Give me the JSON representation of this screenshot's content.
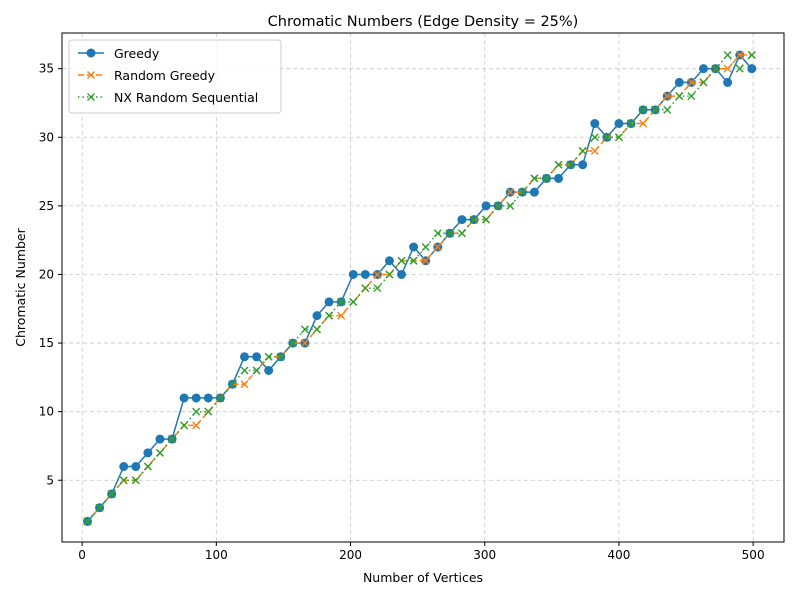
{
  "chart_data": {
    "type": "line",
    "title": "Chromatic Numbers (Edge Density = 25%)",
    "xlabel": "Number of Vertices",
    "ylabel": "Chromatic Number",
    "xlim": [
      -15,
      523
    ],
    "ylim": [
      0.5,
      37.6
    ],
    "xticks": [
      0,
      100,
      200,
      300,
      400,
      500
    ],
    "yticks": [
      5,
      10,
      15,
      20,
      25,
      30,
      35
    ],
    "grid": true,
    "legend_position": "top-left",
    "x": [
      4,
      13,
      22,
      31,
      40,
      49,
      58,
      67,
      76,
      85,
      94,
      103,
      112,
      121,
      130,
      139,
      148,
      157,
      166,
      175,
      184,
      193,
      202,
      211,
      220,
      229,
      238,
      247,
      256,
      265,
      274,
      283,
      292,
      301,
      310,
      319,
      328,
      337,
      346,
      355,
      364,
      373,
      382,
      391,
      400,
      409,
      418,
      427,
      436,
      445,
      454,
      463,
      472,
      481,
      490,
      499
    ],
    "series": [
      {
        "name": "Greedy",
        "color": "#1f77b4",
        "marker": "circle",
        "linestyle": "solid",
        "values": [
          2,
          3,
          4,
          6,
          6,
          7,
          8,
          8,
          11,
          11,
          11,
          11,
          12,
          14,
          14,
          13,
          14,
          15,
          15,
          17,
          18,
          18,
          20,
          20,
          20,
          21,
          20,
          22,
          21,
          22,
          23,
          24,
          24,
          25,
          25,
          26,
          26,
          26,
          27,
          27,
          28,
          28,
          31,
          30,
          31,
          31,
          32,
          32,
          33,
          34,
          34,
          35,
          35,
          34,
          36,
          35
        ]
      },
      {
        "name": "Random Greedy",
        "color": "#ff7f0e",
        "marker": "x",
        "linestyle": "dashed",
        "values": [
          2,
          3,
          4,
          5,
          5,
          6,
          7,
          8,
          9,
          9,
          10,
          11,
          12,
          12,
          13,
          14,
          14,
          15,
          15,
          16,
          17,
          17,
          18,
          19,
          20,
          20,
          21,
          21,
          21,
          22,
          23,
          23,
          24,
          24,
          25,
          26,
          26,
          27,
          27,
          28,
          28,
          29,
          29,
          30,
          30,
          31,
          31,
          32,
          33,
          33,
          34,
          34,
          35,
          35,
          36,
          36
        ]
      },
      {
        "name": "NX Random Sequential",
        "color": "#2ca02c",
        "marker": "x",
        "linestyle": "dotted",
        "values": [
          2,
          3,
          4,
          5,
          5,
          6,
          7,
          8,
          9,
          10,
          10,
          11,
          12,
          13,
          13,
          14,
          14,
          15,
          16,
          16,
          17,
          18,
          18,
          19,
          19,
          20,
          21,
          21,
          22,
          23,
          23,
          23,
          24,
          24,
          25,
          25,
          26,
          27,
          27,
          28,
          28,
          29,
          30,
          30,
          30,
          31,
          32,
          32,
          32,
          33,
          33,
          34,
          35,
          36,
          35,
          36
        ]
      }
    ]
  }
}
